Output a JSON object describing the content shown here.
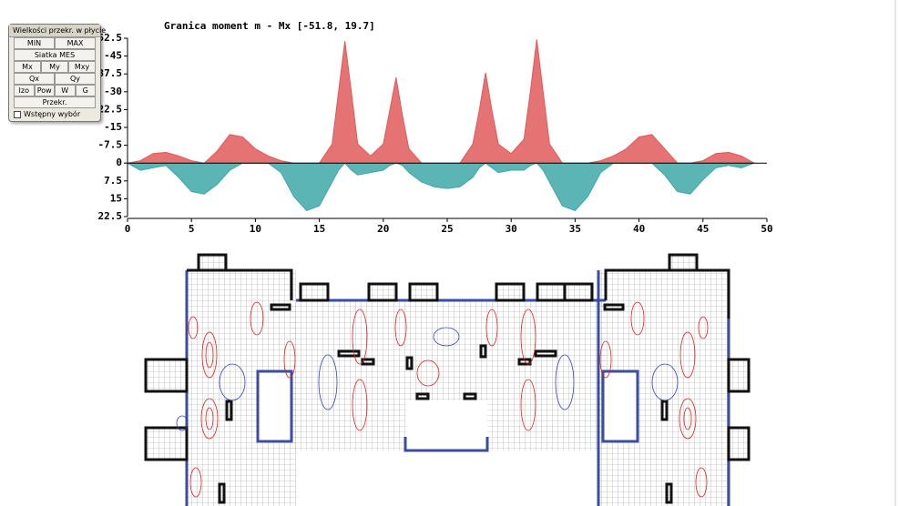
{
  "panel": {
    "title": "Wielkości przekr. w płycie",
    "button_rows": [
      [
        "MIN",
        "MAX"
      ],
      [
        "Siatka MES"
      ],
      [
        "Mx",
        "My",
        "Mxy"
      ],
      [
        "Qx",
        "Qy"
      ],
      [
        "Izo",
        "Pow",
        "W",
        "G"
      ],
      [
        "Przekr."
      ]
    ],
    "checkbox": "Wstępny wybór"
  },
  "chart_data": {
    "type": "area",
    "title": "Granica moment m - Mx [-51.8, 19.7]",
    "x": [
      0,
      1,
      2,
      3,
      4,
      5,
      6,
      7,
      8,
      9,
      10,
      11,
      12,
      13,
      14,
      15,
      16,
      16.5,
      17,
      17.5,
      18,
      19,
      20,
      20.5,
      21,
      21.5,
      22,
      23,
      24,
      25,
      26,
      27,
      27.5,
      28,
      28.5,
      29,
      30,
      31,
      31.5,
      32,
      32.5,
      33,
      34,
      35,
      36,
      37,
      38,
      39,
      40,
      41,
      42,
      43,
      44,
      45,
      46,
      47,
      48,
      49
    ],
    "series": [
      {
        "color": "#e05a5a",
        "values": [
          0,
          -1,
          -4,
          -4.5,
          -3,
          -1,
          0,
          -5,
          -12,
          -11,
          -6,
          -3,
          -1,
          0,
          0,
          0,
          -8,
          -30,
          -51.3,
          -30,
          -8,
          -3,
          -8,
          -22,
          -36,
          -20,
          -6,
          0,
          0,
          0,
          0,
          -8,
          -22,
          -38,
          -22,
          -8,
          -4,
          -10,
          -30,
          -52,
          -30,
          -8,
          0,
          0,
          0,
          -1,
          -3,
          -6,
          -11,
          -12,
          -6,
          0,
          0,
          -1,
          -4,
          -4.5,
          -3,
          0
        ]
      },
      {
        "color": "#3fa8a8",
        "values": [
          0,
          3,
          2,
          1,
          6,
          12,
          13,
          9,
          3,
          0,
          0,
          0,
          4,
          14,
          20,
          18,
          8,
          3,
          0,
          3,
          5,
          4,
          3,
          1,
          0,
          1,
          4,
          8,
          10,
          10.7,
          10,
          6,
          2,
          0,
          2,
          4,
          3,
          3,
          1,
          0,
          3,
          8,
          18,
          20,
          14,
          4,
          0,
          0,
          0,
          0,
          5,
          12,
          13,
          7,
          2,
          1,
          2,
          0
        ]
      }
    ],
    "xlim": [
      0,
      50
    ],
    "xticks": [
      0,
      5,
      10,
      15,
      20,
      25,
      30,
      35,
      40,
      45,
      50
    ],
    "ylim": [
      -52.5,
      22.5
    ],
    "yticks": [
      -52.5,
      -45,
      -37.5,
      -30,
      -22.5,
      -15,
      -7.5,
      0,
      7.5,
      15,
      22.5
    ],
    "y_inverted": true
  }
}
